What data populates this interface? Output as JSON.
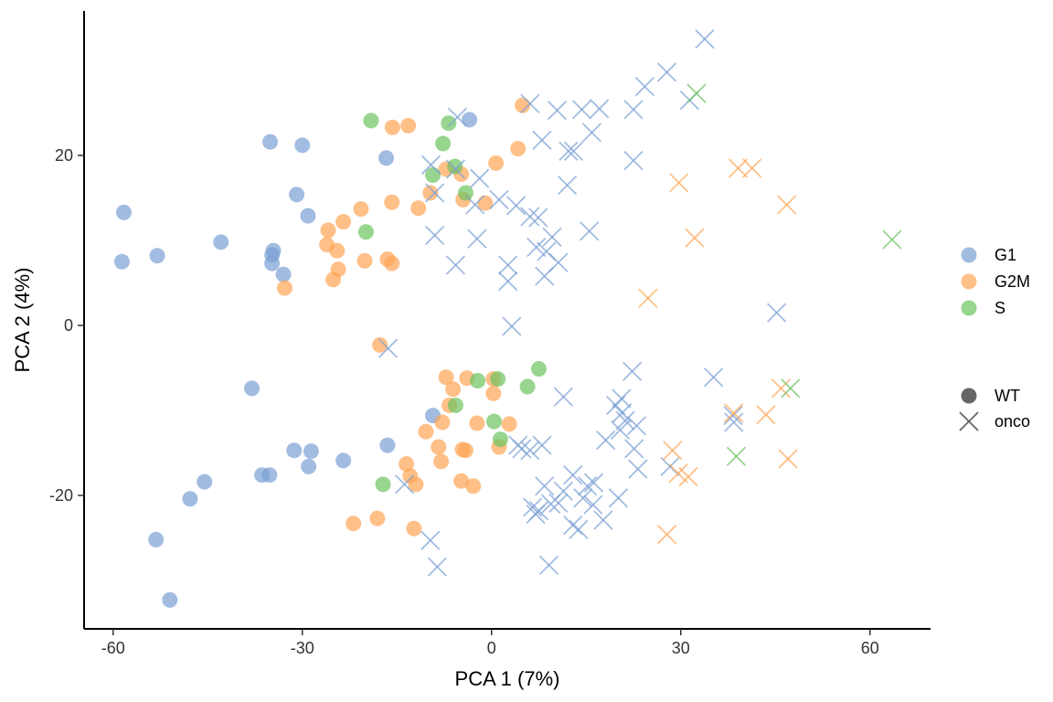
{
  "chart_data": {
    "type": "scatter",
    "xlabel": "PCA 1 (7%)",
    "ylabel": "PCA 2 (4%)",
    "xlim": [
      -64.6,
      69.6
    ],
    "ylim": [
      -35.7,
      37
    ],
    "xticks": [
      -60,
      -30,
      0,
      30,
      60
    ],
    "yticks": [
      -20,
      0,
      20
    ],
    "grid": false,
    "legend_placement": "right",
    "color_legend": [
      {
        "name": "G1",
        "color": "#7a9fd4"
      },
      {
        "name": "G2M",
        "color": "#ffa556"
      },
      {
        "name": "S",
        "color": "#6cc35f"
      }
    ],
    "shape_legend": [
      {
        "name": "WT",
        "shape": "circle"
      },
      {
        "name": "onco",
        "shape": "cross"
      }
    ],
    "series": [
      {
        "phase": "G1",
        "genotype": "WT",
        "points": [
          [
            -58.3,
            13.3
          ],
          [
            -58.6,
            7.5
          ],
          [
            -53.0,
            8.2
          ],
          [
            -42.9,
            9.8
          ],
          [
            -35.1,
            21.6
          ],
          [
            -30.0,
            21.2
          ],
          [
            -34.6,
            8.8
          ],
          [
            -34.8,
            8.3
          ],
          [
            -34.8,
            7.3
          ],
          [
            -33.0,
            6.0
          ],
          [
            -30.9,
            15.4
          ],
          [
            -29.1,
            12.9
          ],
          [
            -16.7,
            19.7
          ],
          [
            -3.5,
            24.2
          ],
          [
            -38.0,
            -7.4
          ],
          [
            -36.4,
            -17.6
          ],
          [
            -35.2,
            -17.6
          ],
          [
            -31.3,
            -14.7
          ],
          [
            -28.6,
            -14.8
          ],
          [
            -29.0,
            -16.6
          ],
          [
            -23.5,
            -15.9
          ],
          [
            -16.5,
            -14.1
          ],
          [
            -9.3,
            -10.6
          ],
          [
            -45.5,
            -18.4
          ],
          [
            -47.8,
            -20.4
          ],
          [
            -53.2,
            -25.2
          ],
          [
            -51.0,
            -32.3
          ]
        ]
      },
      {
        "phase": "G2M",
        "genotype": "WT",
        "points": [
          [
            -15.7,
            23.3
          ],
          [
            -13.2,
            23.5
          ],
          [
            4.9,
            25.9
          ],
          [
            4.2,
            20.8
          ],
          [
            0.7,
            19.1
          ],
          [
            -7.2,
            18.4
          ],
          [
            -4.8,
            17.8
          ],
          [
            -9.7,
            15.6
          ],
          [
            -4.5,
            14.8
          ],
          [
            -1.0,
            14.4
          ],
          [
            -11.6,
            13.8
          ],
          [
            -15.8,
            14.5
          ],
          [
            -20.7,
            13.7
          ],
          [
            -16.5,
            7.8
          ],
          [
            -15.8,
            7.3
          ],
          [
            -20.1,
            7.6
          ],
          [
            -24.5,
            8.8
          ],
          [
            -25.9,
            11.2
          ],
          [
            -26.1,
            9.5
          ],
          [
            -23.5,
            12.2
          ],
          [
            -24.3,
            6.6
          ],
          [
            -25.1,
            5.4
          ],
          [
            -32.8,
            4.4
          ],
          [
            -17.7,
            -2.3
          ],
          [
            -7.2,
            -6.1
          ],
          [
            -6.1,
            -7.5
          ],
          [
            -3.9,
            -6.2
          ],
          [
            0.3,
            -6.3
          ],
          [
            0.3,
            -8.0
          ],
          [
            -6.7,
            -9.4
          ],
          [
            -2.3,
            -11.5
          ],
          [
            2.8,
            -11.6
          ],
          [
            1.2,
            -14.3
          ],
          [
            -10.4,
            -12.5
          ],
          [
            -8.4,
            -14.3
          ],
          [
            -8.0,
            -16.0
          ],
          [
            -4.6,
            -14.6
          ],
          [
            -4.1,
            -14.7
          ],
          [
            -13.5,
            -16.3
          ],
          [
            -12.9,
            -17.7
          ],
          [
            -12.0,
            -18.7
          ],
          [
            -4.8,
            -18.3
          ],
          [
            -2.9,
            -18.9
          ],
          [
            -21.9,
            -23.3
          ],
          [
            -18.1,
            -22.7
          ],
          [
            -12.3,
            -23.9
          ],
          [
            -7.8,
            -11.4
          ]
        ]
      },
      {
        "phase": "S",
        "genotype": "WT",
        "points": [
          [
            -19.1,
            24.1
          ],
          [
            -6.8,
            23.8
          ],
          [
            -7.7,
            21.4
          ],
          [
            -9.3,
            17.7
          ],
          [
            -5.8,
            18.7
          ],
          [
            -4.1,
            15.6
          ],
          [
            -19.9,
            11.0
          ],
          [
            1.0,
            -6.3
          ],
          [
            -2.2,
            -6.5
          ],
          [
            5.7,
            -7.2
          ],
          [
            7.5,
            -5.1
          ],
          [
            -5.7,
            -9.4
          ],
          [
            0.4,
            -11.3
          ],
          [
            1.4,
            -13.4
          ],
          [
            -17.2,
            -18.7
          ]
        ]
      },
      {
        "phase": "G1",
        "genotype": "onco",
        "points": [
          [
            33.8,
            33.7
          ],
          [
            27.8,
            29.8
          ],
          [
            24.3,
            28.1
          ],
          [
            6.1,
            26.1
          ],
          [
            10.4,
            25.3
          ],
          [
            14.3,
            25.4
          ],
          [
            17.1,
            25.5
          ],
          [
            22.5,
            25.4
          ],
          [
            -5.4,
            24.5
          ],
          [
            31.4,
            26.5
          ],
          [
            15.9,
            22.7
          ],
          [
            8.0,
            21.8
          ],
          [
            13.0,
            20.5
          ],
          [
            12.2,
            20.5
          ],
          [
            22.5,
            19.4
          ],
          [
            -5.7,
            18.4
          ],
          [
            -9.6,
            18.9
          ],
          [
            -9.0,
            15.6
          ],
          [
            -1.9,
            17.3
          ],
          [
            1.2,
            14.8
          ],
          [
            -2.6,
            14.2
          ],
          [
            3.9,
            14.1
          ],
          [
            6.1,
            12.8
          ],
          [
            7.4,
            12.7
          ],
          [
            9.6,
            10.4
          ],
          [
            15.5,
            11.1
          ],
          [
            7.1,
            9.2
          ],
          [
            8.7,
            8.7
          ],
          [
            10.6,
            7.4
          ],
          [
            8.4,
            5.8
          ],
          [
            2.6,
            7.1
          ],
          [
            2.6,
            5.2
          ],
          [
            -9.0,
            10.6
          ],
          [
            -2.3,
            10.2
          ],
          [
            -5.7,
            7.1
          ],
          [
            12.0,
            16.5
          ],
          [
            3.2,
            -0.1
          ],
          [
            -16.4,
            -2.7
          ],
          [
            45.2,
            1.5
          ],
          [
            22.3,
            -5.4
          ],
          [
            11.4,
            -8.4
          ],
          [
            35.2,
            -6.1
          ],
          [
            38.3,
            -10.6
          ],
          [
            38.4,
            -11.4
          ],
          [
            20.6,
            -8.6
          ],
          [
            20.7,
            -10.3
          ],
          [
            21.2,
            -11.2
          ],
          [
            23.0,
            -11.8
          ],
          [
            20.4,
            -12.3
          ],
          [
            22.6,
            -14.5
          ],
          [
            23.2,
            -16.9
          ],
          [
            18.1,
            -13.5
          ],
          [
            12.9,
            -17.6
          ],
          [
            15.2,
            -18.9
          ],
          [
            16.2,
            -18.5
          ],
          [
            14.5,
            -20.3
          ],
          [
            11.4,
            -19.5
          ],
          [
            10.6,
            -20.9
          ],
          [
            16.1,
            -21.1
          ],
          [
            20.1,
            -20.3
          ],
          [
            17.7,
            -22.9
          ],
          [
            13.8,
            -24.0
          ],
          [
            12.9,
            -23.5
          ],
          [
            8.0,
            -14.1
          ],
          [
            6.1,
            -14.7
          ],
          [
            4.8,
            -14.5
          ],
          [
            8.4,
            -18.9
          ],
          [
            6.5,
            -21.4
          ],
          [
            7.5,
            -21.8
          ],
          [
            9.4,
            -21.0
          ],
          [
            7.0,
            -22.2
          ],
          [
            9.1,
            -28.2
          ],
          [
            -9.7,
            -25.3
          ],
          [
            -8.6,
            -28.4
          ],
          [
            -13.8,
            -18.7
          ],
          [
            28.3,
            -16.6
          ],
          [
            19.7,
            -9.4
          ],
          [
            4.2,
            -14.1
          ]
        ]
      },
      {
        "phase": "G2M",
        "genotype": "onco",
        "points": [
          [
            29.7,
            16.8
          ],
          [
            39.1,
            18.5
          ],
          [
            41.3,
            18.5
          ],
          [
            46.8,
            14.2
          ],
          [
            32.2,
            10.3
          ],
          [
            24.8,
            3.2
          ],
          [
            45.9,
            -7.4
          ],
          [
            38.4,
            -10.3
          ],
          [
            43.5,
            -10.5
          ],
          [
            47.0,
            -15.7
          ],
          [
            28.7,
            -14.7
          ],
          [
            29.6,
            -17.4
          ],
          [
            31.2,
            -17.8
          ],
          [
            27.8,
            -24.6
          ]
        ]
      },
      {
        "phase": "S",
        "genotype": "onco",
        "points": [
          [
            32.5,
            27.3
          ],
          [
            63.5,
            10.1
          ],
          [
            47.4,
            -7.4
          ],
          [
            38.8,
            -15.4
          ]
        ]
      }
    ]
  }
}
